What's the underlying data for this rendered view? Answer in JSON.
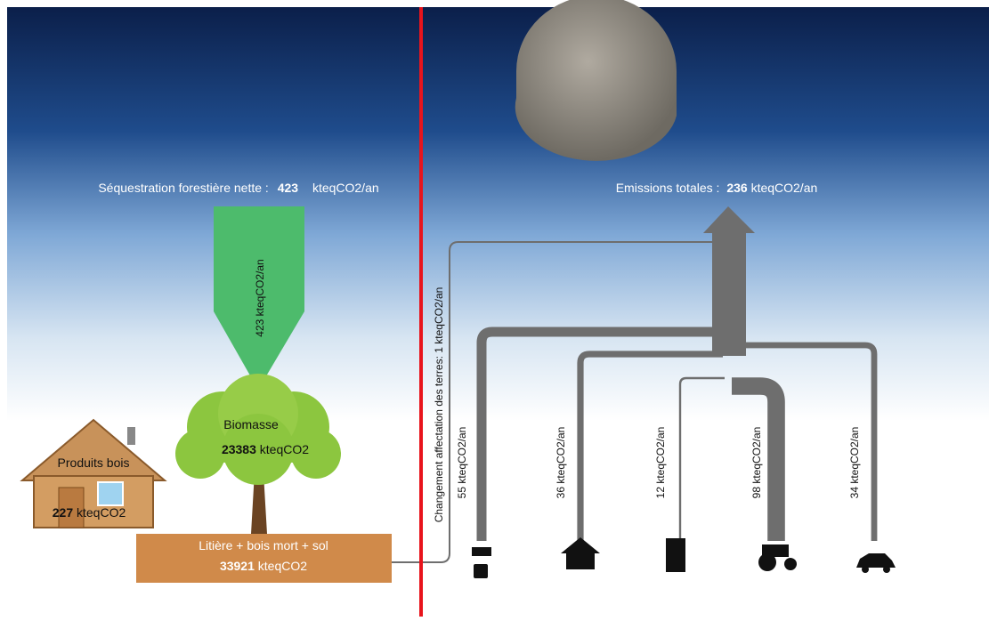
{
  "sequestration": {
    "label": "Séquestration forestière nette :",
    "value": "423",
    "unit": "kteqCO2/an",
    "arrow_label": "423 kteqCO2/an"
  },
  "stocks": {
    "biomasse": {
      "label": "Biomasse",
      "value": "23383",
      "unit": "kteqCO2"
    },
    "produits_bois": {
      "label": "Produits bois",
      "value": "227",
      "unit": "kteqCO2"
    },
    "sol": {
      "label": "Litière + bois mort + sol",
      "value": "33921",
      "unit": "kteqCO2"
    }
  },
  "emissions": {
    "label": "Emissions totales :",
    "value": "236",
    "unit": "kteqCO2/an"
  },
  "flows": [
    {
      "label": "Changement affectation des terres: 1 kteqCO2/an"
    },
    {
      "label": "55 kteqCO2/an"
    },
    {
      "label": "36 kteqCO2/an"
    },
    {
      "label": "12 kteqCO2/an"
    },
    {
      "label": "98 kteqCO2/an"
    },
    {
      "label": "34 kteqCO2/an"
    }
  ]
}
